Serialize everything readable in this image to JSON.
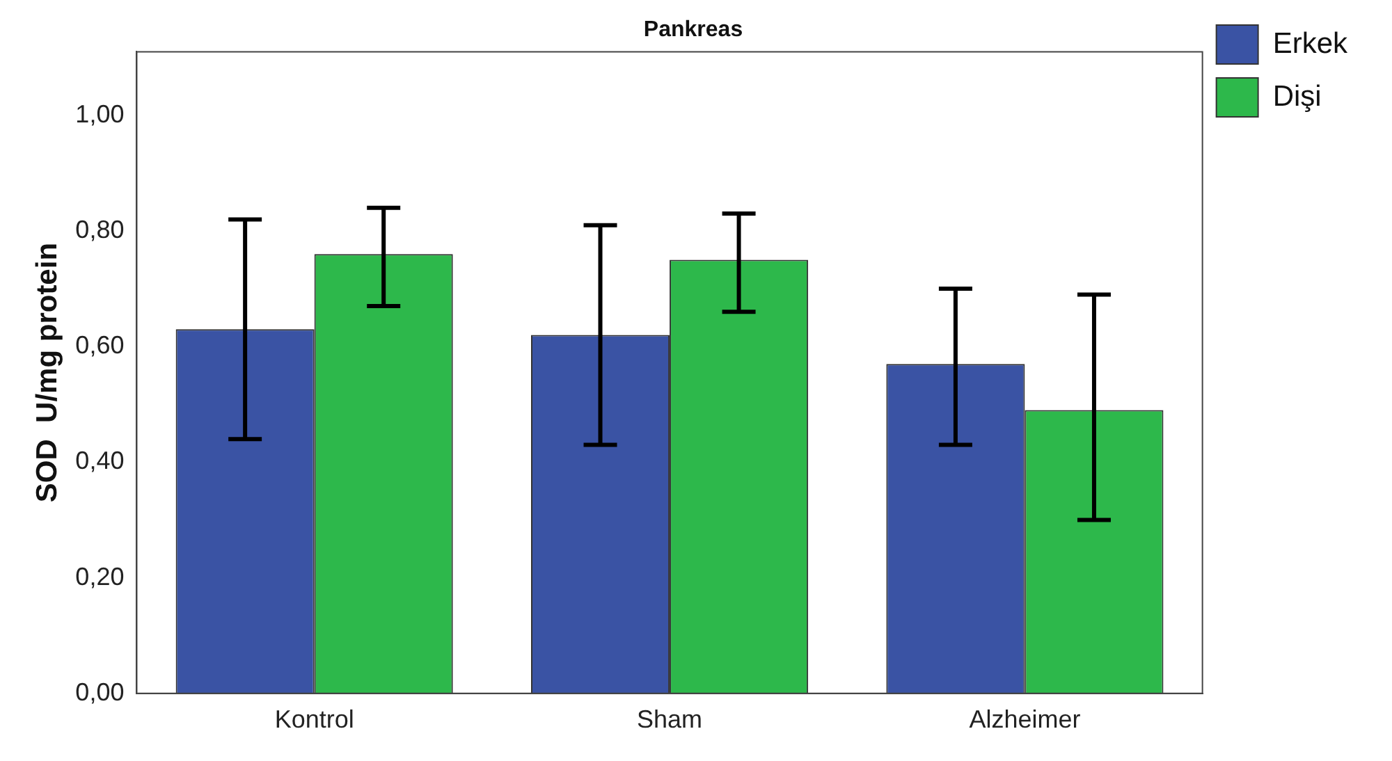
{
  "chart_data": {
    "type": "bar",
    "title": "Pankreas",
    "ylabel": "SOD  U/mg protein",
    "categories": [
      "Kontrol",
      "Sham",
      "Alzheimer"
    ],
    "series": [
      {
        "name": "Erkek",
        "color": "#3a53a4",
        "values": [
          0.63,
          0.62,
          0.57
        ],
        "errors": [
          [
            0.44,
            0.82
          ],
          [
            0.43,
            0.81
          ],
          [
            0.43,
            0.7
          ]
        ]
      },
      {
        "name": "Dişi",
        "color": "#2db84b",
        "values": [
          0.76,
          0.75,
          0.49
        ],
        "errors": [
          [
            0.67,
            0.84
          ],
          [
            0.66,
            0.83
          ],
          [
            0.3,
            0.69
          ]
        ]
      }
    ],
    "ylim": [
      0,
      1.11
    ],
    "yticks": [
      {
        "value": 0,
        "label": "0,00"
      },
      {
        "value": 0.2,
        "label": "0,20"
      },
      {
        "value": 0.4,
        "label": "0,40"
      },
      {
        "value": 0.6,
        "label": "0,60"
      },
      {
        "value": 0.8,
        "label": "0,80"
      },
      {
        "value": 1,
        "label": "1,00"
      }
    ],
    "grid": false,
    "legend": "top right"
  }
}
